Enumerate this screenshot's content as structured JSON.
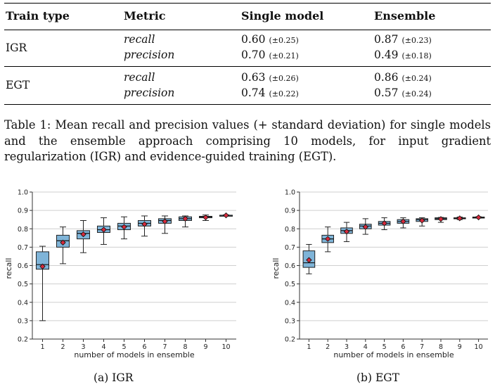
{
  "table": {
    "headers": [
      "Train type",
      "Metric",
      "Single model",
      "Ensemble"
    ],
    "groups": [
      {
        "train_type": "IGR",
        "rows": [
          {
            "metric": "recall",
            "single": "0.60",
            "single_sd": "(±0.25)",
            "ensemble": "0.87",
            "ensemble_sd": "(±0.23)"
          },
          {
            "metric": "precision",
            "single": "0.70",
            "single_sd": "(±0.21)",
            "ensemble": "0.49",
            "ensemble_sd": "(±0.18)"
          }
        ]
      },
      {
        "train_type": "EGT",
        "rows": [
          {
            "metric": "recall",
            "single": "0.63",
            "single_sd": "(±0.26)",
            "ensemble": "0.86",
            "ensemble_sd": "(±0.24)"
          },
          {
            "metric": "precision",
            "single": "0.74",
            "single_sd": "(±0.22)",
            "ensemble": "0.57",
            "ensemble_sd": "(±0.24)"
          }
        ]
      }
    ]
  },
  "caption": "Table 1: Mean recall and precision values (+ standard deviation) for single models and the ensemble approach comprising 10 models, for input gradient regularization (IGR) and evidence-guided training (EGT).",
  "colors": {
    "box_fill": "#7fb4d8",
    "mean_marker": "#d62a3c",
    "grid": "#cfcfcf",
    "axis": "#333333"
  },
  "chart_data": [
    {
      "type": "box",
      "subcaption": "(a) IGR",
      "xlabel": "number of models in ensemble",
      "ylabel": "recall",
      "ylim": [
        0.2,
        1.0
      ],
      "yticks": [
        "0.2",
        "0.3",
        "0.4",
        "0.5",
        "0.6",
        "0.7",
        "0.8",
        "0.9",
        "1.0"
      ],
      "categories": [
        "1",
        "2",
        "3",
        "4",
        "5",
        "6",
        "7",
        "8",
        "9",
        "10"
      ],
      "boxes": [
        {
          "min": 0.3,
          "q1": 0.58,
          "median": 0.605,
          "q3": 0.675,
          "max": 0.705,
          "mean": 0.595
        },
        {
          "min": 0.61,
          "q1": 0.7,
          "median": 0.735,
          "q3": 0.765,
          "max": 0.81,
          "mean": 0.725
        },
        {
          "min": 0.67,
          "q1": 0.745,
          "median": 0.775,
          "q3": 0.79,
          "max": 0.845,
          "mean": 0.77
        },
        {
          "min": 0.715,
          "q1": 0.78,
          "median": 0.795,
          "q3": 0.815,
          "max": 0.86,
          "mean": 0.795
        },
        {
          "min": 0.745,
          "q1": 0.795,
          "median": 0.815,
          "q3": 0.83,
          "max": 0.865,
          "mean": 0.81
        },
        {
          "min": 0.76,
          "q1": 0.815,
          "median": 0.83,
          "q3": 0.845,
          "max": 0.87,
          "mean": 0.825
        },
        {
          "min": 0.775,
          "q1": 0.83,
          "median": 0.845,
          "q3": 0.855,
          "max": 0.87,
          "mean": 0.84
        },
        {
          "min": 0.81,
          "q1": 0.845,
          "median": 0.855,
          "q3": 0.865,
          "max": 0.87,
          "mean": 0.855
        },
        {
          "min": 0.845,
          "q1": 0.86,
          "median": 0.865,
          "q3": 0.868,
          "max": 0.875,
          "mean": 0.862
        },
        {
          "min": 0.87,
          "q1": 0.872,
          "median": 0.873,
          "q3": 0.874,
          "max": 0.876,
          "mean": 0.873
        }
      ]
    },
    {
      "type": "box",
      "subcaption": "(b) EGT",
      "xlabel": "number of models in ensemble",
      "ylabel": "recall",
      "ylim": [
        0.2,
        1.0
      ],
      "yticks": [
        "0.2",
        "0.3",
        "0.4",
        "0.5",
        "0.6",
        "0.7",
        "0.8",
        "0.9",
        "1.0"
      ],
      "categories": [
        "1",
        "2",
        "3",
        "4",
        "5",
        "6",
        "7",
        "8",
        "9",
        "10"
      ],
      "boxes": [
        {
          "min": 0.555,
          "q1": 0.59,
          "median": 0.615,
          "q3": 0.68,
          "max": 0.715,
          "mean": 0.63
        },
        {
          "min": 0.675,
          "q1": 0.725,
          "median": 0.745,
          "q3": 0.765,
          "max": 0.81,
          "mean": 0.745
        },
        {
          "min": 0.73,
          "q1": 0.775,
          "median": 0.79,
          "q3": 0.805,
          "max": 0.835,
          "mean": 0.785
        },
        {
          "min": 0.77,
          "q1": 0.8,
          "median": 0.815,
          "q3": 0.825,
          "max": 0.855,
          "mean": 0.81
        },
        {
          "min": 0.795,
          "q1": 0.82,
          "median": 0.83,
          "q3": 0.84,
          "max": 0.86,
          "mean": 0.83
        },
        {
          "min": 0.805,
          "q1": 0.83,
          "median": 0.84,
          "q3": 0.85,
          "max": 0.86,
          "mean": 0.84
        },
        {
          "min": 0.815,
          "q1": 0.84,
          "median": 0.85,
          "q3": 0.855,
          "max": 0.86,
          "mean": 0.845
        },
        {
          "min": 0.835,
          "q1": 0.85,
          "median": 0.855,
          "q3": 0.86,
          "max": 0.862,
          "mean": 0.853
        },
        {
          "min": 0.85,
          "q1": 0.855,
          "median": 0.857,
          "q3": 0.86,
          "max": 0.864,
          "mean": 0.857
        },
        {
          "min": 0.858,
          "q1": 0.86,
          "median": 0.862,
          "q3": 0.864,
          "max": 0.866,
          "mean": 0.862
        }
      ]
    }
  ]
}
